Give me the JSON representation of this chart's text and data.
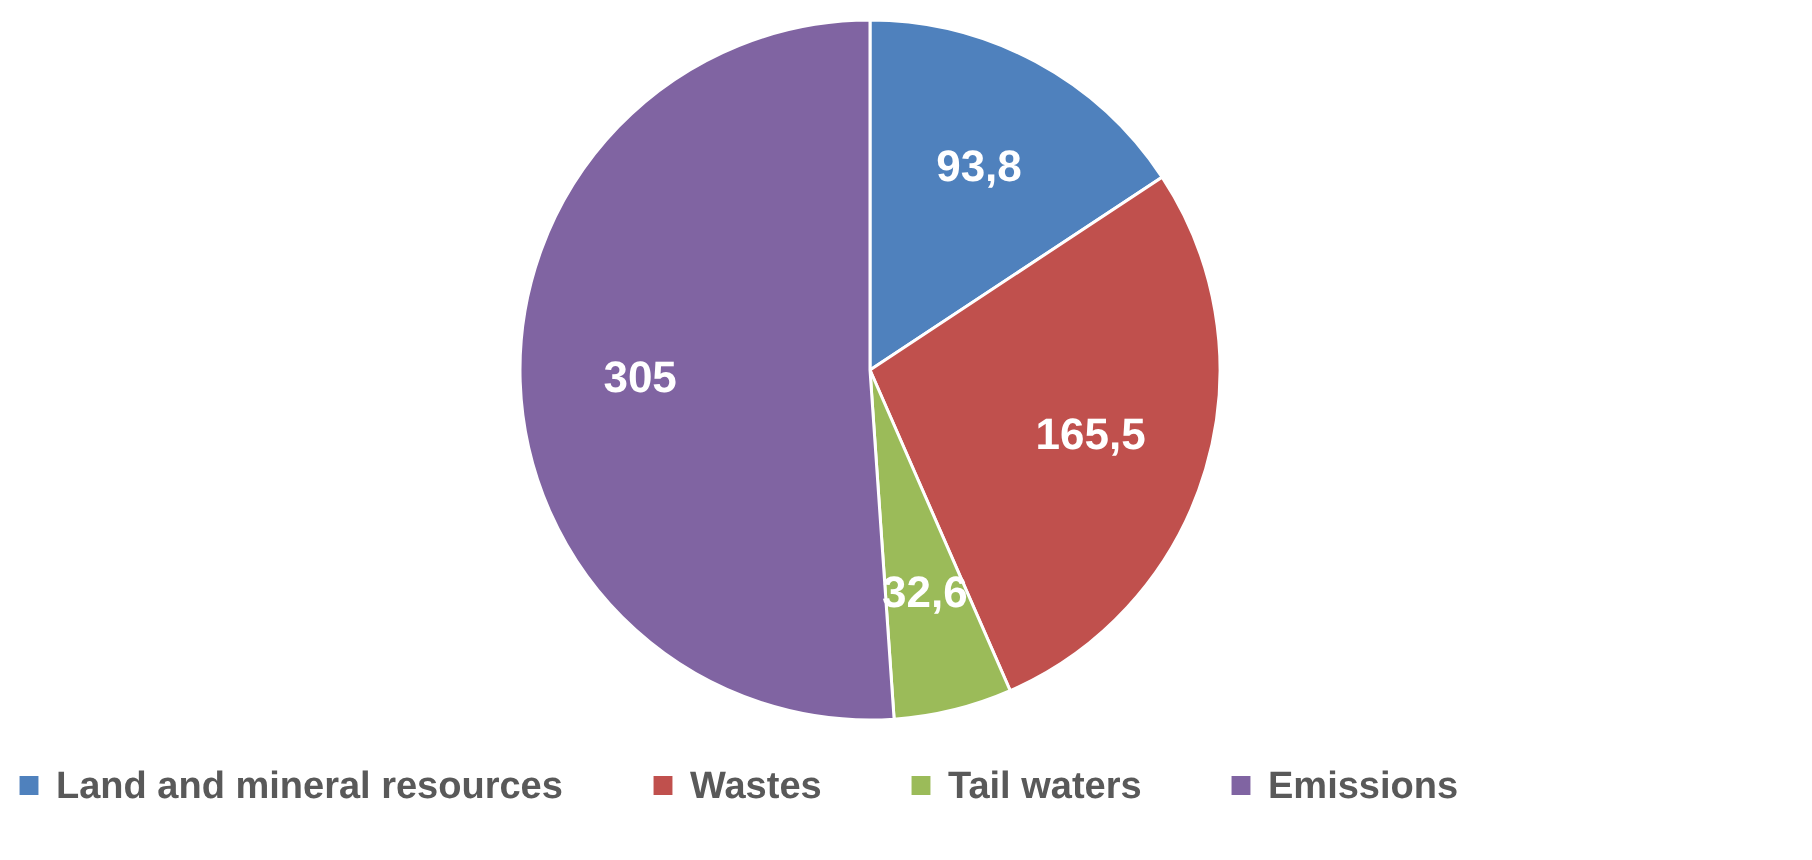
{
  "chart_data": {
    "type": "pie",
    "categories": [
      "Land and mineral resources",
      "Wastes",
      "Tail waters",
      "Emissions"
    ],
    "values": [
      93.8,
      165.5,
      32.6,
      305
    ],
    "value_labels": [
      "93,8",
      "165,5",
      "32,6",
      "305"
    ],
    "colors": [
      "#4f81bd",
      "#c0504d",
      "#9bbb59",
      "#8064a2"
    ],
    "legend": "bottom"
  }
}
